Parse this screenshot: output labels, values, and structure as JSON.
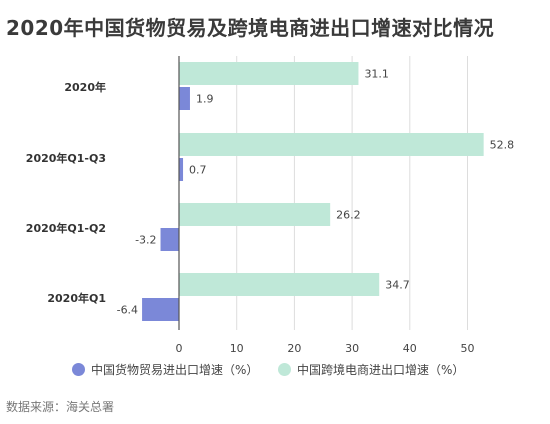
{
  "title": "2020年中国货物贸易及跨境电商进出口增速对比情况",
  "source": "数据来源：海关总署",
  "colors": {
    "goods": "#7b88d8",
    "ecommerce": "#bfe8d8",
    "axis": "#555555",
    "grid": "#dddddd"
  },
  "chart_data": {
    "type": "bar",
    "orientation": "horizontal",
    "categories": [
      "2020年",
      "2020年Q1-Q3",
      "2020年Q1-Q2",
      "2020年Q1"
    ],
    "series": [
      {
        "name": "中国货物贸易进出口增速（%）",
        "values": [
          1.9,
          0.7,
          -3.2,
          -6.4
        ]
      },
      {
        "name": "中国跨境电商进出口增速（%）",
        "values": [
          31.1,
          52.8,
          26.2,
          34.7
        ]
      }
    ],
    "value_labels": {
      "goods": [
        "1.9",
        "0.7",
        "-3.2",
        "-6.4"
      ],
      "ecommerce": [
        "31.1",
        "52.8",
        "26.2",
        "34.7"
      ]
    },
    "xticks": [
      "0",
      "10",
      "20",
      "30",
      "40",
      "50"
    ],
    "xlim": [
      -7,
      54
    ],
    "grid": "vertical",
    "legend_position": "bottom"
  }
}
